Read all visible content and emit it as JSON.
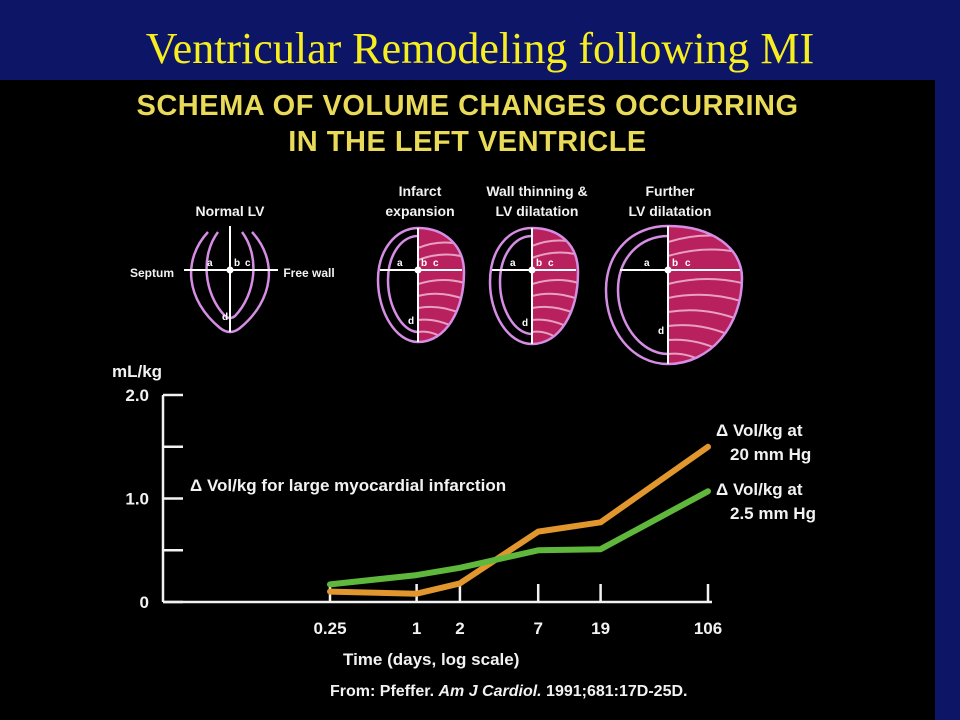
{
  "slide": {
    "title": "Ventricular Remodeling following MI",
    "heading_line1": "SCHEMA OF VOLUME CHANGES OCCURRING",
    "heading_line2": "IN THE LEFT VENTRICLE"
  },
  "diagrams": {
    "panels": [
      {
        "label_line1": "Normal LV",
        "label_line2": ""
      },
      {
        "label_line1": "Infarct",
        "label_line2": "expansion"
      },
      {
        "label_line1": "Wall thinning &",
        "label_line2": "LV dilatation"
      },
      {
        "label_line1": "Further",
        "label_line2": "LV dilatation"
      }
    ],
    "septum_label": "Septum",
    "free_wall_label": "Free wall",
    "point_labels": [
      "a",
      "b",
      "c",
      "d"
    ],
    "colors": {
      "outline": "#d58ee3",
      "infarct": "#b8215e",
      "stripe": "#e6a0c4"
    }
  },
  "chart_data": {
    "type": "line",
    "title": "",
    "xlabel": "Time (days, log scale)",
    "ylabel": "mL/kg",
    "x_scale": "log",
    "x": [
      0.25,
      1,
      2,
      7,
      19,
      106
    ],
    "x_tick_labels": [
      "0.25",
      "1",
      "2",
      "7",
      "19",
      "106"
    ],
    "y_ticks": [
      0,
      0.5,
      1.0,
      1.5,
      2.0
    ],
    "y_tick_labels": [
      "0",
      "",
      "1.0",
      "",
      "2.0"
    ],
    "ylim": [
      0,
      2.0
    ],
    "annotation": "Δ Vol/kg for large myocardial infarction",
    "series": [
      {
        "name_line1": "Δ Vol/kg at",
        "name_line2": "20 mm Hg",
        "color": "#e2962e",
        "values": [
          0.1,
          0.08,
          0.18,
          0.68,
          0.77,
          1.5
        ]
      },
      {
        "name_line1": "Δ Vol/kg at",
        "name_line2": "2.5 mm Hg",
        "color": "#5fb83b",
        "values": [
          0.17,
          0.26,
          0.33,
          0.5,
          0.51,
          1.07
        ]
      }
    ]
  },
  "source": {
    "prefix": "From: Pfeffer. ",
    "journal": "Am J Cardiol.",
    "citation": " 1991;681:17D-25D."
  }
}
